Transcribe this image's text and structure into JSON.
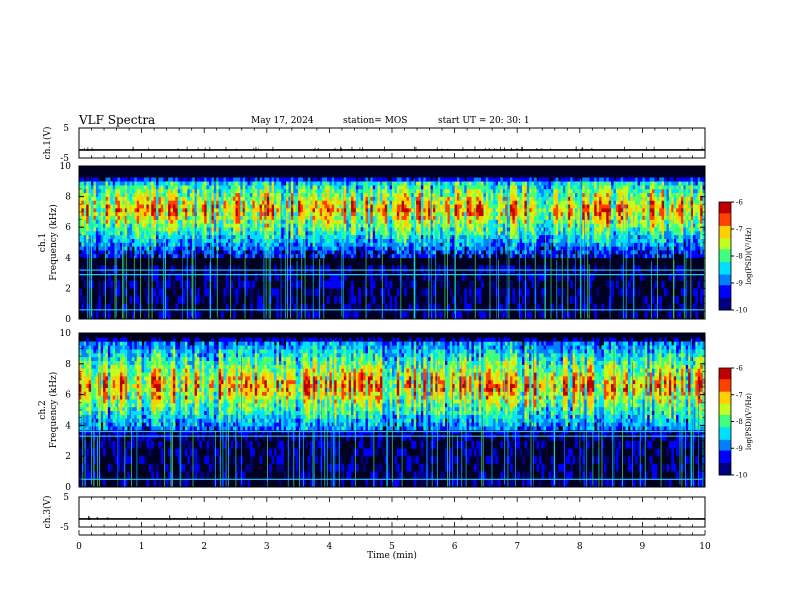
{
  "header": {
    "title": "VLF Spectra",
    "date": "May 17, 2024",
    "station": "station= MOS",
    "start": "start  UT  =   20: 30: 1"
  },
  "chart_data": [
    {
      "type": "line",
      "panel": "ch1-waveform",
      "ylabel": "ch.1(V)",
      "ylim": [
        -5,
        5
      ],
      "yticklabels": [
        "5",
        "-5"
      ],
      "x": [
        0,
        10
      ],
      "values": [
        -2.3,
        -2.3
      ]
    },
    {
      "type": "heatmap",
      "panel": "ch1-spectrogram",
      "ylabel": "ch.1\nFrequency (kHz)",
      "ylim": [
        0,
        10
      ],
      "yticklabels": [
        "0",
        "2",
        "4",
        "6",
        "8",
        "10"
      ],
      "xlim": [
        0,
        10
      ],
      "band_khz": [
        3.5,
        9.2
      ],
      "noise_lines_khz": [
        0.6,
        2.9,
        3.2
      ],
      "colorbar": {
        "label": "log(PSD)(V²/Hz)",
        "range": [
          -10,
          -6
        ],
        "ticklabels": [
          "-6",
          "-7",
          "-8",
          "-9",
          "-10"
        ]
      }
    },
    {
      "type": "heatmap",
      "panel": "ch2-spectrogram",
      "ylabel": "ch.2\nFrequency (kHz)",
      "ylim": [
        0,
        10
      ],
      "yticklabels": [
        "0",
        "2",
        "4",
        "6",
        "8",
        "10"
      ],
      "xlim": [
        0,
        10
      ],
      "band_khz": [
        3.2,
        9.6
      ],
      "band_peak_khz": 6.5,
      "noise_lines_khz": [
        0.5,
        3.3,
        3.6
      ],
      "colorbar": {
        "label": "log(PSD)(V²/Hz)",
        "range": [
          -10,
          -6
        ],
        "ticklabels": [
          "-6",
          "-7",
          "-8",
          "-9",
          "-10"
        ]
      }
    },
    {
      "type": "line",
      "panel": "ch3-waveform",
      "ylabel": "ch.3(V)",
      "ylim": [
        -5,
        5
      ],
      "yticklabels": [
        "5",
        "-5"
      ],
      "x": [
        0,
        10
      ],
      "values": [
        -2.3,
        -2.3
      ]
    }
  ],
  "xaxis": {
    "label": "Time (min)",
    "range": [
      0,
      10
    ],
    "ticklabels": [
      "0",
      "1",
      "2",
      "3",
      "4",
      "5",
      "6",
      "7",
      "8",
      "9",
      "10"
    ]
  },
  "colors": {
    "colormap": [
      "#000080",
      "#0000ff",
      "#0080ff",
      "#00e0ff",
      "#40ff80",
      "#c0ff20",
      "#ffd000",
      "#ff4000",
      "#c00000"
    ]
  }
}
